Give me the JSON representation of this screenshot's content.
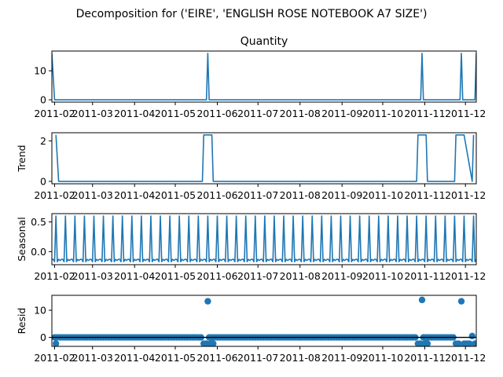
{
  "suptitle": "Decomposition for ('EIRE', 'ENGLISH ROSE NOTEBOOK A7 SIZE')",
  "x_tick_labels": [
    "2011-02",
    "2011-03",
    "2011-04",
    "2011-05",
    "2011-06",
    "2011-07",
    "2011-08",
    "2011-09",
    "2011-10",
    "2011-11",
    "2011-12"
  ],
  "colors": {
    "series": "#1f77b4",
    "axis": "#000000",
    "background": "#ffffff"
  },
  "chart_data": [
    {
      "type": "line",
      "title": "Quantity",
      "ylabel": "",
      "ylim": [
        -0.8,
        16.8
      ],
      "yticks": [
        0,
        10
      ],
      "xlim": [
        "2011-01-30",
        "2011-12-09"
      ],
      "x_tick_labels": [
        "2011-02",
        "2011-03",
        "2011-04",
        "2011-05",
        "2011-06",
        "2011-07",
        "2011-08",
        "2011-09",
        "2011-10",
        "2011-11",
        "2011-12"
      ],
      "points": [
        [
          "2011-01-30",
          16
        ],
        [
          "2011-02-01",
          0
        ],
        [
          "2011-05-24",
          0
        ],
        [
          "2011-05-25",
          16
        ],
        [
          "2011-05-26",
          0
        ],
        [
          "2011-10-29",
          0
        ],
        [
          "2011-10-30",
          16
        ],
        [
          "2011-10-31",
          0
        ],
        [
          "2011-11-27",
          0
        ],
        [
          "2011-11-28",
          16
        ],
        [
          "2011-11-29",
          0
        ],
        [
          "2011-12-08",
          0
        ],
        [
          "2011-12-09",
          16
        ]
      ]
    },
    {
      "type": "line",
      "title": "",
      "ylabel": "Trend",
      "ylim": [
        -0.12,
        2.4
      ],
      "yticks": [
        0,
        2
      ],
      "xlim": [
        "2011-01-30",
        "2011-12-09"
      ],
      "x_tick_labels": [
        "2011-02",
        "2011-03",
        "2011-04",
        "2011-05",
        "2011-06",
        "2011-07",
        "2011-08",
        "2011-09",
        "2011-10",
        "2011-11",
        "2011-12"
      ],
      "points": [
        [
          "2011-02-02",
          2.29
        ],
        [
          "2011-02-04",
          0
        ],
        [
          "2011-05-21",
          0
        ],
        [
          "2011-05-22",
          2.29
        ],
        [
          "2011-05-28",
          2.29
        ],
        [
          "2011-05-29",
          0
        ],
        [
          "2011-10-26",
          0
        ],
        [
          "2011-10-27",
          2.29
        ],
        [
          "2011-11-02",
          2.29
        ],
        [
          "2011-11-03",
          0
        ],
        [
          "2011-11-23",
          0
        ],
        [
          "2011-11-24",
          2.29
        ],
        [
          "2011-11-30",
          2.29
        ],
        [
          "2011-12-06",
          0
        ],
        [
          "2011-12-07",
          2.29
        ]
      ]
    },
    {
      "type": "line",
      "title": "",
      "ylabel": "Seasonal",
      "ylim": [
        -0.22,
        0.64
      ],
      "yticks": [
        0.0,
        0.5
      ],
      "xlim": [
        "2011-01-30",
        "2011-12-09"
      ],
      "x_tick_labels": [
        "2011-02",
        "2011-03",
        "2011-04",
        "2011-05",
        "2011-06",
        "2011-07",
        "2011-08",
        "2011-09",
        "2011-10",
        "2011-11",
        "2011-12"
      ],
      "seasonal": {
        "start": "2011-01-30",
        "end": "2011-12-09",
        "period_days": 7,
        "pattern": [
          -0.13,
          -0.13,
          -0.17,
          0.6,
          -0.17,
          -0.13,
          -0.15
        ]
      }
    },
    {
      "type": "scatter",
      "title": "",
      "ylabel": "Resid",
      "ylim": [
        -3.3,
        15.5
      ],
      "yticks": [
        0,
        10
      ],
      "xlim": [
        "2011-01-30",
        "2011-12-09"
      ],
      "x_tick_labels": [
        "2011-02",
        "2011-03",
        "2011-04",
        "2011-05",
        "2011-06",
        "2011-07",
        "2011-08",
        "2011-09",
        "2011-10",
        "2011-11",
        "2011-12"
      ],
      "baseline": 0,
      "scatter": {
        "start": "2011-02-01",
        "end": "2011-12-09",
        "step_days": 2,
        "base_value": 0,
        "specials": [
          [
            "2011-02-02",
            -2.3
          ],
          [
            "2011-05-22",
            -2.3
          ],
          [
            "2011-05-24",
            -2.3
          ],
          [
            "2011-05-25",
            13.3
          ],
          [
            "2011-05-27",
            -2.3
          ],
          [
            "2011-05-29",
            -2.3
          ],
          [
            "2011-10-27",
            -2.3
          ],
          [
            "2011-10-29",
            -2.3
          ],
          [
            "2011-10-30",
            13.8
          ],
          [
            "2011-11-01",
            -2.3
          ],
          [
            "2011-11-03",
            -2.3
          ],
          [
            "2011-11-24",
            -2.3
          ],
          [
            "2011-11-26",
            -2.3
          ],
          [
            "2011-11-28",
            13.3
          ],
          [
            "2011-11-30",
            -2.3
          ],
          [
            "2011-12-02",
            -2.3
          ],
          [
            "2011-12-04",
            -2.3
          ],
          [
            "2011-12-06",
            0.5
          ],
          [
            "2011-12-08",
            -2.3
          ]
        ]
      }
    }
  ]
}
